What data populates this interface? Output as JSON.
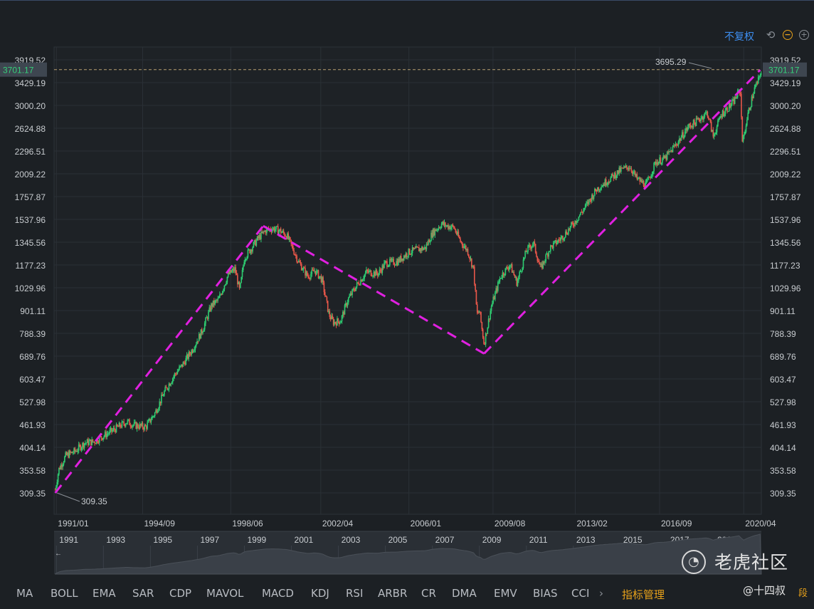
{
  "toolbar": {
    "adjust_mode": "不复权",
    "undo_icon": "undo-icon",
    "zoom_out_icon": "zoom-out-icon",
    "zoom_in_icon": "zoom-in-icon"
  },
  "chart_data": {
    "type": "candlestick",
    "y_scale": "log",
    "ylim": [
      300,
      4000
    ],
    "y_ticks": [
      "3919.52",
      "3429.19",
      "3000.20",
      "2624.88",
      "2296.51",
      "2009.22",
      "1757.87",
      "1537.96",
      "1345.56",
      "1177.23",
      "1029.96",
      "901.11",
      "788.39",
      "689.76",
      "603.47",
      "527.98",
      "461.93",
      "404.14",
      "353.58",
      "309.35"
    ],
    "x_ticks": [
      "1991/01",
      "1994/09",
      "1998/06",
      "2002/04",
      "2006/01",
      "2009/08",
      "2013/02",
      "2016/09",
      "2020/04"
    ],
    "xlim_years": [
      1990.9,
      2021.0
    ],
    "current_price": "3701.17",
    "max_label": "3695.29",
    "min_label": "309.35",
    "price_path": [
      [
        1990.95,
        315
      ],
      [
        1991.1,
        355
      ],
      [
        1991.4,
        385
      ],
      [
        1991.8,
        395
      ],
      [
        1992.2,
        415
      ],
      [
        1992.6,
        418
      ],
      [
        1993.0,
        432
      ],
      [
        1993.5,
        450
      ],
      [
        1994.0,
        470
      ],
      [
        1994.3,
        460
      ],
      [
        1994.8,
        455
      ],
      [
        1995.2,
        495
      ],
      [
        1995.6,
        560
      ],
      [
        1996.0,
        615
      ],
      [
        1996.4,
        660
      ],
      [
        1996.8,
        720
      ],
      [
        1997.2,
        800
      ],
      [
        1997.6,
        930
      ],
      [
        1997.9,
        960
      ],
      [
        1998.3,
        1110
      ],
      [
        1998.6,
        1150
      ],
      [
        1998.8,
        1010
      ],
      [
        1999.0,
        1230
      ],
      [
        1999.3,
        1300
      ],
      [
        1999.6,
        1380
      ],
      [
        1999.9,
        1440
      ],
      [
        2000.2,
        1460
      ],
      [
        2000.5,
        1440
      ],
      [
        2000.8,
        1400
      ],
      [
        2001.0,
        1320
      ],
      [
        2001.3,
        1200
      ],
      [
        2001.7,
        1100
      ],
      [
        2002.0,
        1140
      ],
      [
        2002.3,
        1080
      ],
      [
        2002.6,
        880
      ],
      [
        2002.8,
        840
      ],
      [
        2003.1,
        850
      ],
      [
        2003.4,
        960
      ],
      [
        2003.8,
        1050
      ],
      [
        2004.2,
        1130
      ],
      [
        2004.7,
        1120
      ],
      [
        2005.0,
        1190
      ],
      [
        2005.5,
        1200
      ],
      [
        2006.0,
        1270
      ],
      [
        2006.4,
        1290
      ],
      [
        2006.7,
        1300
      ],
      [
        2007.0,
        1420
      ],
      [
        2007.4,
        1500
      ],
      [
        2007.6,
        1480
      ],
      [
        2007.9,
        1470
      ],
      [
        2008.2,
        1350
      ],
      [
        2008.5,
        1280
      ],
      [
        2008.75,
        1150
      ],
      [
        2008.9,
        880
      ],
      [
        2009.0,
        900
      ],
      [
        2009.2,
        740
      ],
      [
        2009.5,
        920
      ],
      [
        2009.9,
        1100
      ],
      [
        2010.3,
        1180
      ],
      [
        2010.6,
        1060
      ],
      [
        2011.0,
        1280
      ],
      [
        2011.3,
        1340
      ],
      [
        2011.6,
        1150
      ],
      [
        2012.0,
        1300
      ],
      [
        2012.5,
        1380
      ],
      [
        2013.0,
        1500
      ],
      [
        2013.5,
        1650
      ],
      [
        2014.0,
        1840
      ],
      [
        2014.5,
        1940
      ],
      [
        2015.0,
        2050
      ],
      [
        2015.4,
        2100
      ],
      [
        2015.7,
        1950
      ],
      [
        2016.1,
        1880
      ],
      [
        2016.5,
        2150
      ],
      [
        2016.9,
        2200
      ],
      [
        2017.4,
        2400
      ],
      [
        2017.9,
        2650
      ],
      [
        2018.2,
        2720
      ],
      [
        2018.7,
        2880
      ],
      [
        2018.95,
        2500
      ],
      [
        2019.3,
        2850
      ],
      [
        2019.8,
        3050
      ],
      [
        2020.1,
        3300
      ],
      [
        2020.2,
        2400
      ],
      [
        2020.4,
        2800
      ],
      [
        2020.7,
        3300
      ],
      [
        2020.9,
        3500
      ],
      [
        2021.0,
        3701
      ]
    ],
    "trend_lines": [
      [
        [
          1990.95,
          309.35
        ],
        [
          1999.8,
          1480
        ]
      ],
      [
        [
          1999.8,
          1480
        ],
        [
          2009.2,
          700
        ]
      ],
      [
        [
          2009.2,
          700
        ],
        [
          2020.95,
          3695.29
        ]
      ]
    ],
    "trend_color": "#e020e0",
    "up_color": "#2ecc71",
    "down_color": "#e8574a"
  },
  "navigator": {
    "years": [
      "1991",
      "1993",
      "1995",
      "1997",
      "1999",
      "2001",
      "2003",
      "2005",
      "2007",
      "2009",
      "2011",
      "2013",
      "2015",
      "2017",
      "2019"
    ]
  },
  "indicators": [
    "MA",
    "BOLL",
    "EMA",
    "SAR",
    "CDP",
    "MAVOL",
    "MACD",
    "KDJ",
    "RSI",
    "ARBR",
    "CR",
    "DMA",
    "EMV",
    "BIAS",
    "CCI"
  ],
  "indicator_more": "›",
  "indicator_manage": "指标管理",
  "watermark": {
    "brand": "老虎社区",
    "author": "@十四叔",
    "tail": "段"
  }
}
